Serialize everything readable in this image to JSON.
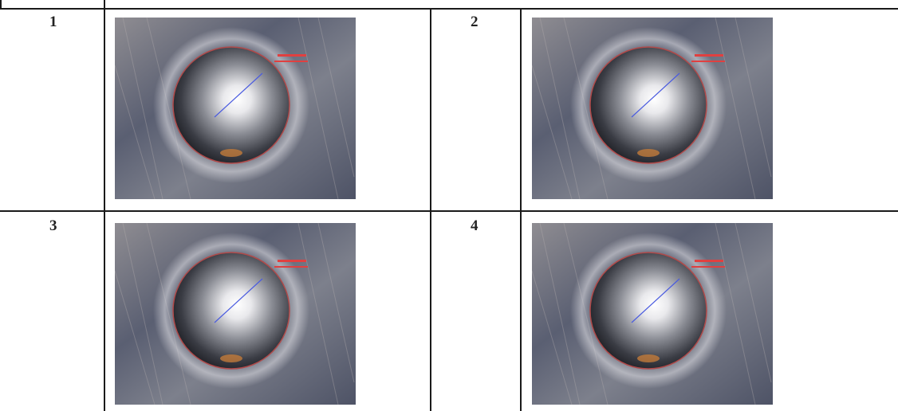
{
  "table": {
    "rows": [
      {
        "cells": [
          {
            "number": "1",
            "image": "micrograph-circular-hole-icon"
          },
          {
            "number": "2",
            "image": "micrograph-circular-hole-icon"
          }
        ]
      },
      {
        "cells": [
          {
            "number": "3",
            "image": "micrograph-circular-hole-icon"
          },
          {
            "number": "4",
            "image": "micrograph-circular-hole-icon"
          }
        ]
      }
    ]
  }
}
